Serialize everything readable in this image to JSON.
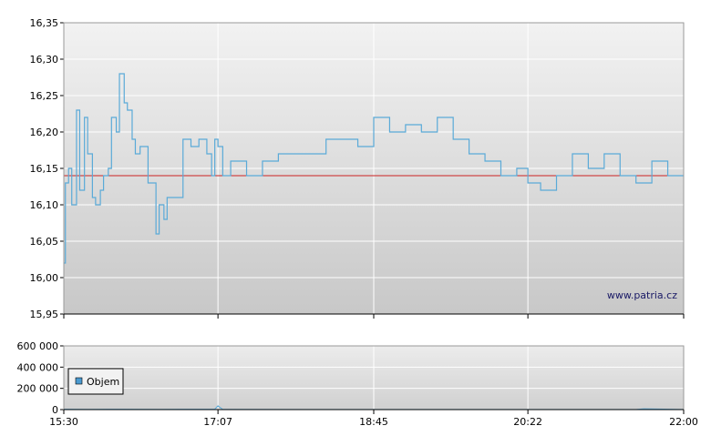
{
  "chart_data": [
    {
      "type": "line",
      "title": "",
      "xlabel": "",
      "ylabel": "",
      "ylim": [
        15.95,
        16.35
      ],
      "y_ticks": [
        "16,35",
        "16,30",
        "16,25",
        "16,20",
        "16,15",
        "16,10",
        "16,05",
        "16,00",
        "15,95"
      ],
      "y_tick_values": [
        16.35,
        16.3,
        16.25,
        16.2,
        16.15,
        16.1,
        16.05,
        16.0,
        15.95
      ],
      "grid": true,
      "reference_line": {
        "y": 16.14,
        "color": "#cc2222"
      },
      "watermark": "www.patria.cz",
      "line_color": "#5aaad8",
      "series": [
        {
          "x": [
            "15:30",
            "15:31",
            "15:33",
            "15:35",
            "15:38",
            "15:40",
            "15:43",
            "15:45",
            "15:48",
            "15:50",
            "15:53",
            "15:55",
            "15:58",
            "16:00",
            "16:03",
            "16:05",
            "16:08",
            "16:10",
            "16:13",
            "16:15",
            "16:18",
            "16:20",
            "16:23",
            "16:25",
            "16:28",
            "16:30",
            "16:33",
            "16:35",
            "16:40",
            "16:45",
            "16:50",
            "16:55",
            "17:00",
            "17:03",
            "17:05",
            "17:07",
            "17:10",
            "17:15",
            "17:25",
            "17:35",
            "17:45",
            "17:55",
            "18:05",
            "18:15",
            "18:25",
            "18:35",
            "18:45",
            "18:55",
            "19:05",
            "19:15",
            "19:25",
            "19:35",
            "19:45",
            "19:55",
            "20:05",
            "20:15",
            "20:22",
            "20:30",
            "20:40",
            "20:50",
            "21:00",
            "21:10",
            "21:20",
            "21:30",
            "21:40",
            "21:50",
            "21:55",
            "22:00"
          ],
          "y": [
            16.02,
            16.13,
            16.15,
            16.1,
            16.23,
            16.12,
            16.22,
            16.17,
            16.11,
            16.1,
            16.12,
            16.14,
            16.15,
            16.22,
            16.2,
            16.28,
            16.24,
            16.23,
            16.19,
            16.17,
            16.18,
            16.18,
            16.13,
            16.13,
            16.06,
            16.1,
            16.08,
            16.11,
            16.11,
            16.19,
            16.18,
            16.19,
            16.17,
            16.14,
            16.19,
            16.18,
            16.14,
            16.16,
            16.14,
            16.16,
            16.17,
            16.17,
            16.17,
            16.19,
            16.19,
            16.18,
            16.22,
            16.2,
            16.21,
            16.2,
            16.22,
            16.19,
            16.17,
            16.16,
            16.14,
            16.15,
            16.13,
            16.12,
            16.14,
            16.17,
            16.15,
            16.17,
            16.14,
            16.13,
            16.16,
            16.14,
            16.14,
            16.14
          ]
        }
      ]
    },
    {
      "type": "area",
      "ylim": [
        0,
        600000
      ],
      "y_ticks": [
        "600 000",
        "400 000",
        "200 000",
        "0"
      ],
      "y_tick_values": [
        600000,
        400000,
        200000,
        0
      ],
      "x_ticks": [
        "15:30",
        "17:07",
        "18:45",
        "20:22",
        "22:00"
      ],
      "grid": true,
      "legend": "Objem",
      "legend_color": "#4a9ad0",
      "series": [
        {
          "name": "Objem",
          "x": [
            "15:30",
            "15:45",
            "16:00",
            "16:30",
            "17:05",
            "17:07",
            "17:10",
            "18:00",
            "19:00",
            "20:00",
            "21:30",
            "21:35",
            "22:00"
          ],
          "y": [
            3000,
            2000,
            3000,
            2000,
            4000,
            35000,
            2000,
            1000,
            1000,
            1000,
            1000,
            8000,
            1000
          ]
        }
      ]
    }
  ]
}
